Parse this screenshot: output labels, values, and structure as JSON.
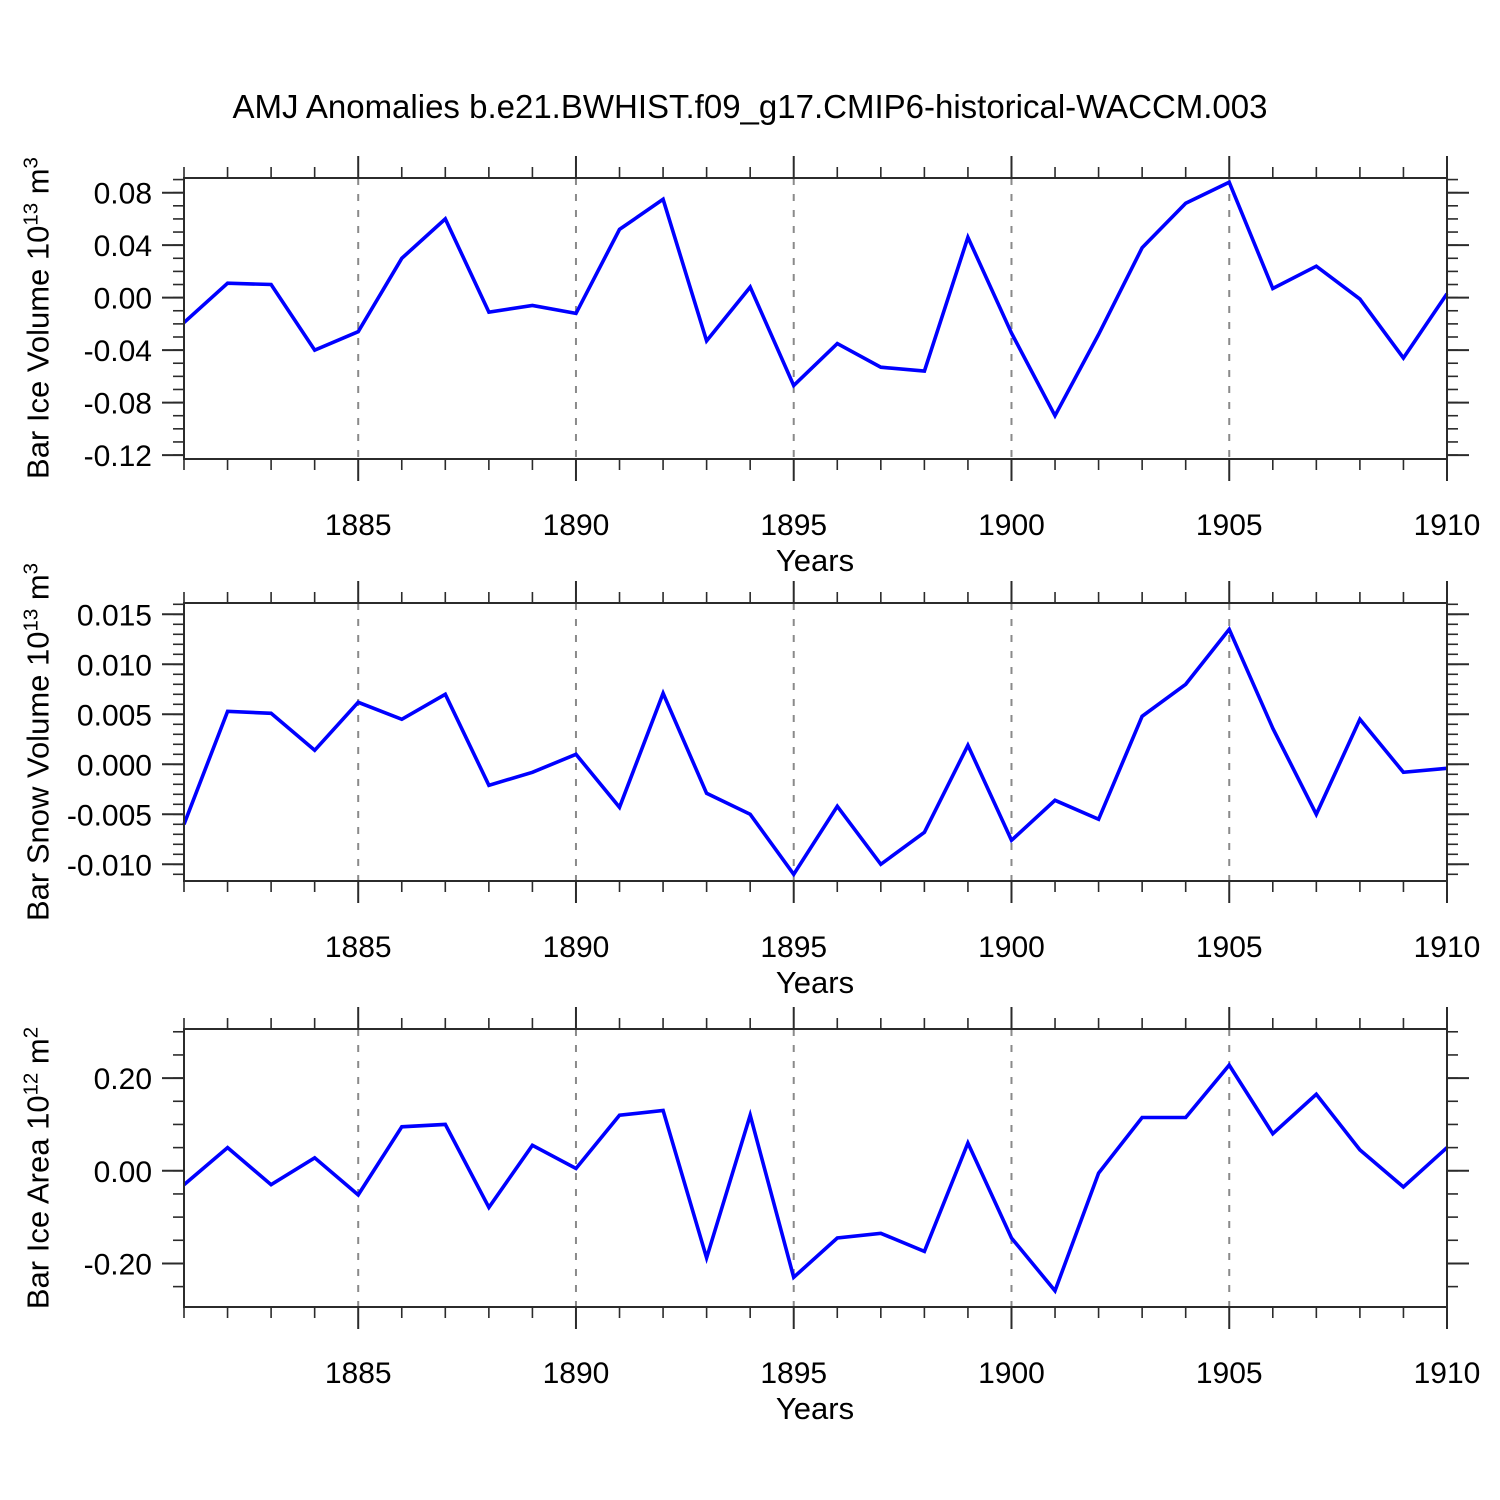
{
  "title": "AMJ Anomalies b.e21.BWHIST.f09_g17.CMIP6-historical-WACCM.003",
  "style": {
    "line_color": "#0000ff",
    "grid_color": "#8a8a8a",
    "axis_color": "#2b2b2b",
    "text_color": "#000000"
  },
  "years": [
    1881,
    1882,
    1883,
    1884,
    1885,
    1886,
    1887,
    1888,
    1889,
    1890,
    1891,
    1892,
    1893,
    1894,
    1895,
    1896,
    1897,
    1898,
    1899,
    1900,
    1901,
    1902,
    1903,
    1904,
    1905,
    1906,
    1907,
    1908,
    1909,
    1910
  ],
  "chart_data": [
    {
      "type": "line",
      "name": "bar-ice-volume",
      "ylabel": {
        "base": "Bar Ice Volume 10",
        "exp": "13",
        "unit": " m",
        "unit_exp": "3"
      },
      "xlabel": "Years",
      "xlim": [
        1881,
        1910
      ],
      "ylim": [
        -0.123,
        0.0912
      ],
      "ytick_values": [
        0.08,
        0.04,
        0.0,
        -0.04,
        -0.08,
        -0.12
      ],
      "ytick_labels": [
        "0.08",
        "0.04",
        "0.00",
        "-0.04",
        "-0.08",
        "-0.12"
      ],
      "ytick_minor_step": 0.01,
      "xtick_major": [
        1885,
        1890,
        1895,
        1900,
        1905,
        1910
      ],
      "xtick_labels": [
        "1885",
        "1890",
        "1895",
        "1900",
        "1905",
        "1910"
      ],
      "xtick_minor_step": 1,
      "grid_years": [
        1885,
        1890,
        1895,
        1900,
        1905
      ],
      "values": [
        -0.019,
        0.011,
        0.01,
        -0.04,
        -0.026,
        0.03,
        0.06,
        -0.011,
        -0.006,
        -0.012,
        0.052,
        0.075,
        -0.033,
        0.008,
        -0.067,
        -0.035,
        -0.053,
        -0.056,
        0.046,
        -0.027,
        -0.09,
        -0.028,
        0.038,
        0.072,
        0.088,
        0.007,
        0.024,
        -0.001,
        -0.046,
        0.003
      ]
    },
    {
      "type": "line",
      "name": "bar-snow-volume",
      "ylabel": {
        "base": "Bar Snow Volume 10",
        "exp": "13",
        "unit": " m",
        "unit_exp": "3"
      },
      "xlabel": "Years",
      "xlim": [
        1881,
        1910
      ],
      "ylim": [
        -0.01167,
        0.01613
      ],
      "ytick_values": [
        0.015,
        0.01,
        0.005,
        0.0,
        -0.005,
        -0.01
      ],
      "ytick_labels": [
        "0.015",
        "0.010",
        "0.005",
        "0.000",
        "-0.005",
        "-0.010"
      ],
      "ytick_minor_step": 0.001,
      "xtick_major": [
        1885,
        1890,
        1895,
        1900,
        1905,
        1910
      ],
      "xtick_labels": [
        "1885",
        "1890",
        "1895",
        "1900",
        "1905",
        "1910"
      ],
      "xtick_minor_step": 1,
      "grid_years": [
        1885,
        1890,
        1895,
        1900,
        1905
      ],
      "values": [
        -0.006,
        0.0053,
        0.0051,
        0.0014,
        0.0062,
        0.0045,
        0.007,
        -0.0021,
        -0.0008,
        0.001,
        -0.0043,
        0.0071,
        -0.0029,
        -0.005,
        -0.011,
        -0.0042,
        -0.01,
        -0.0068,
        0.0019,
        -0.0076,
        -0.0036,
        -0.0055,
        0.0048,
        0.008,
        0.0135,
        0.0036,
        -0.005,
        0.0045,
        -0.0008,
        -0.0004
      ]
    },
    {
      "type": "line",
      "name": "bar-ice-area",
      "ylabel": {
        "base": "Bar Ice Area 10",
        "exp": "12",
        "unit": " m",
        "unit_exp": "2"
      },
      "xlabel": "Years",
      "xlim": [
        1881,
        1910
      ],
      "ylim": [
        -0.294,
        0.306
      ],
      "ytick_values": [
        0.2,
        0.0,
        -0.2
      ],
      "ytick_labels": [
        "0.20",
        "0.00",
        "-0.20"
      ],
      "ytick_minor_step": 0.05,
      "xtick_major": [
        1885,
        1890,
        1895,
        1900,
        1905,
        1910
      ],
      "xtick_labels": [
        "1885",
        "1890",
        "1895",
        "1900",
        "1905",
        "1910"
      ],
      "xtick_minor_step": 1,
      "grid_years": [
        1885,
        1890,
        1895,
        1900,
        1905
      ],
      "values": [
        -0.03,
        0.05,
        -0.03,
        0.028,
        -0.052,
        0.095,
        0.1,
        -0.079,
        0.055,
        0.005,
        0.12,
        0.13,
        -0.188,
        0.12,
        -0.23,
        -0.145,
        -0.135,
        -0.174,
        0.06,
        -0.145,
        -0.259,
        -0.005,
        0.115,
        0.115,
        0.228,
        0.08,
        0.165,
        0.045,
        -0.035,
        0.05
      ]
    }
  ]
}
